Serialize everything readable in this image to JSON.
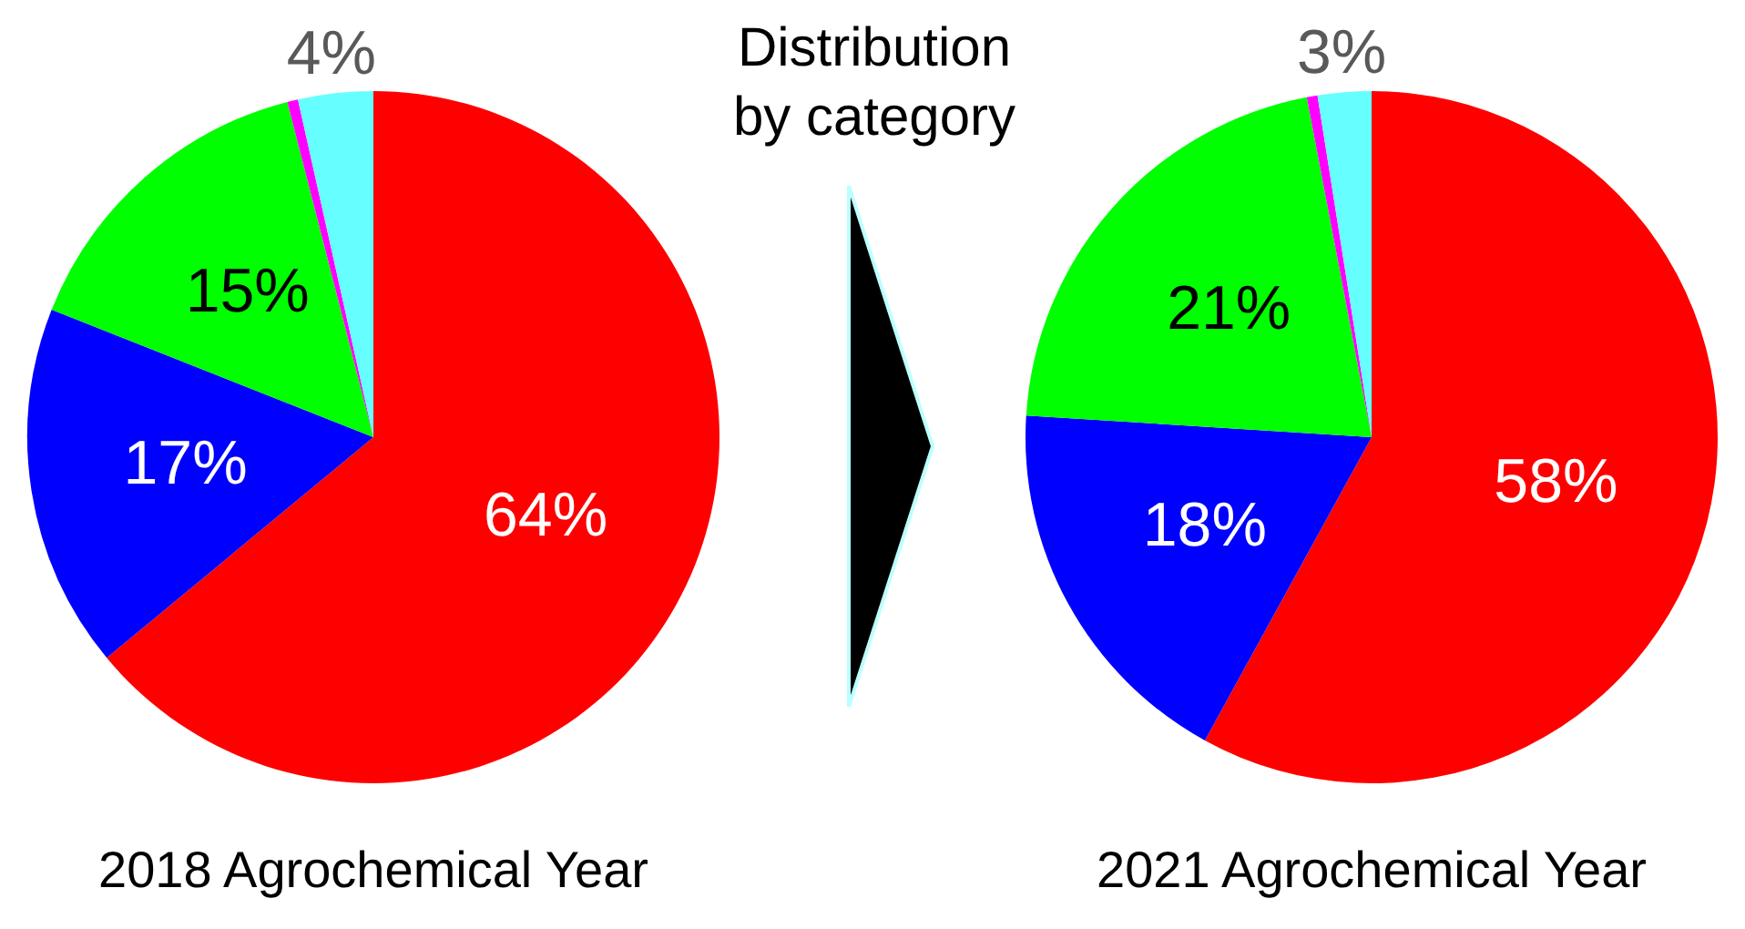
{
  "chart_data": [
    {
      "type": "pie",
      "categories": [
        null,
        null,
        null,
        null,
        null
      ],
      "values": [
        64,
        17,
        15,
        0.5,
        3.5
      ],
      "colors": [
        "#ff0000",
        "#0000ff",
        "#00ff00",
        "#ff00ff",
        "#66ffff"
      ],
      "value_labels": [
        "64%",
        "17%",
        "15%",
        null,
        "4%"
      ],
      "xlabel": "2018 Agrochemical Year",
      "legend": false
    },
    {
      "type": "other",
      "title": "Distribution by category"
    },
    {
      "type": "pie",
      "categories": [
        null,
        null,
        null,
        null,
        null
      ],
      "values": [
        58,
        18,
        21,
        0.5,
        2.5
      ],
      "colors": [
        "#ff0000",
        "#0000ff",
        "#00ff00",
        "#ff00ff",
        "#66ffff"
      ],
      "value_labels": [
        "58%",
        "18%",
        "21%",
        null,
        "3%"
      ],
      "xlabel": "2021 Agrochemical Year",
      "legend": false
    }
  ]
}
